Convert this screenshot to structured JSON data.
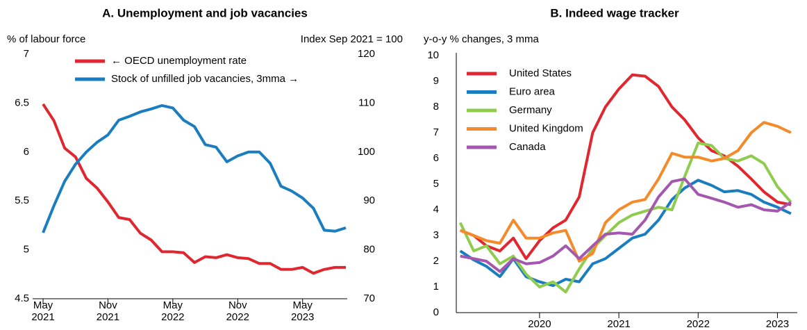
{
  "chart_data": [
    {
      "type": "line",
      "title": "A. Unemployment and job vacancies",
      "ylabel": "% of labour force",
      "y2label": "Index Sep 2021 = 100",
      "categories": [
        "May 2021",
        "Jun 2021",
        "Jul 2021",
        "Aug 2021",
        "Sep 2021",
        "Oct 2021",
        "Nov 2021",
        "Dec 2021",
        "Jan 2022",
        "Feb 2022",
        "Mar 2022",
        "Apr 2022",
        "May 2022",
        "Jun 2022",
        "Jul 2022",
        "Aug 2022",
        "Sep 2022",
        "Oct 2022",
        "Nov 2022",
        "Dec 2022",
        "Jan 2023",
        "Feb 2023",
        "Mar 2023",
        "Apr 2023",
        "May 2023",
        "Jun 2023",
        "Jul 2023",
        "Aug 2023",
        "Sep 2023"
      ],
      "xticks": [
        {
          "value": "May 2021",
          "label": [
            "May",
            "2021"
          ]
        },
        {
          "value": "Nov 2021",
          "label": [
            "Nov",
            "2021"
          ]
        },
        {
          "value": "May 2022",
          "label": [
            "May",
            "2022"
          ]
        },
        {
          "value": "Nov 2022",
          "label": [
            "Nov",
            "2022"
          ]
        },
        {
          "value": "May 2023",
          "label": [
            "May",
            "2023"
          ]
        }
      ],
      "ylim": [
        4.5,
        7.0
      ],
      "yticks": [
        4.5,
        5.0,
        5.5,
        6.0,
        6.5,
        7.0
      ],
      "y2lim": [
        70,
        120
      ],
      "y2ticks": [
        70,
        80,
        90,
        100,
        110,
        120
      ],
      "series": [
        {
          "name": "← OECD unemployment rate",
          "color": "#e0262f",
          "axis": "y",
          "values": [
            6.49,
            6.32,
            6.04,
            5.95,
            5.73,
            5.63,
            5.49,
            5.33,
            5.31,
            5.17,
            5.1,
            4.98,
            4.98,
            4.97,
            4.87,
            4.93,
            4.92,
            4.95,
            4.92,
            4.91,
            4.86,
            4.86,
            4.8,
            4.8,
            4.82,
            4.76,
            4.8,
            4.82,
            4.82
          ]
        },
        {
          "name": "Stock of unfilled job vacancies, 3mma →",
          "color": "#1a7dc0",
          "axis": "y2",
          "values": [
            83.5,
            89,
            94,
            97.5,
            100,
            102,
            103.5,
            106.5,
            107.3,
            108.2,
            108.8,
            109.5,
            109,
            106.5,
            105.2,
            101.5,
            101,
            98,
            99.2,
            100,
            100,
            97.7,
            93,
            92,
            90.6,
            88.5,
            84,
            83.8,
            84.5
          ]
        }
      ]
    },
    {
      "type": "line",
      "title": "B. Indeed wage tracker",
      "ylabel": "y-o-y % changes, 3 mma",
      "x": [
        2019.5,
        2019.67,
        2019.83,
        2020.0,
        2020.17,
        2020.33,
        2020.5,
        2020.67,
        2020.83,
        2021.0,
        2021.17,
        2021.33,
        2021.5,
        2021.67,
        2021.83,
        2022.0,
        2022.17,
        2022.33,
        2022.5,
        2022.67,
        2022.83,
        2023.0,
        2023.17,
        2023.33,
        2023.5,
        2023.67
      ],
      "xlim": [
        2019.45,
        2023.75
      ],
      "xticks": [
        {
          "value": 2020.5,
          "label": "2020"
        },
        {
          "value": 2021.5,
          "label": "2021"
        },
        {
          "value": 2022.5,
          "label": "2022"
        },
        {
          "value": 2023.5,
          "label": "2023"
        }
      ],
      "ylim": [
        0,
        10
      ],
      "yticks": [
        0,
        1,
        2,
        3,
        4,
        5,
        6,
        7,
        8,
        9,
        10
      ],
      "series": [
        {
          "name": "United States",
          "color": "#e0262f",
          "values": [
            3.2,
            3.0,
            2.6,
            2.4,
            2.9,
            2.1,
            2.8,
            3.3,
            3.6,
            4.5,
            7.0,
            8.0,
            8.7,
            9.25,
            9.2,
            8.8,
            8.0,
            7.5,
            6.8,
            6.3,
            6.1,
            5.7,
            5.2,
            4.7,
            4.3,
            4.2
          ]
        },
        {
          "name": "Euro area",
          "color": "#1a7dc0",
          "values": [
            2.4,
            2.05,
            1.8,
            1.4,
            2.1,
            1.4,
            1.2,
            1.05,
            1.3,
            1.2,
            1.9,
            2.1,
            2.5,
            2.9,
            3.05,
            3.6,
            4.4,
            4.85,
            5.15,
            4.95,
            4.7,
            4.75,
            4.6,
            4.3,
            4.1,
            3.85
          ]
        },
        {
          "name": "Germany",
          "color": "#8fcc4e",
          "values": [
            3.5,
            2.4,
            2.6,
            1.9,
            2.2,
            1.5,
            1.0,
            1.2,
            0.8,
            1.7,
            2.5,
            3.0,
            3.5,
            3.8,
            3.95,
            4.1,
            4.0,
            5.3,
            6.6,
            6.5,
            6.0,
            5.9,
            6.1,
            5.8,
            4.9,
            4.3
          ]
        },
        {
          "name": "United Kingdom",
          "color": "#f58a2a",
          "values": [
            3.2,
            3.0,
            2.8,
            2.7,
            3.6,
            2.9,
            2.9,
            3.1,
            3.2,
            2.0,
            2.3,
            3.5,
            4.0,
            4.3,
            4.4,
            5.2,
            6.2,
            6.05,
            6.05,
            5.9,
            6.0,
            6.3,
            7.0,
            7.4,
            7.25,
            7.0
          ]
        },
        {
          "name": "Canada",
          "color": "#a457ae",
          "values": [
            2.2,
            2.1,
            2.0,
            1.6,
            2.1,
            1.9,
            1.95,
            2.2,
            2.6,
            2.1,
            2.6,
            3.05,
            3.1,
            3.05,
            3.6,
            4.5,
            5.1,
            5.2,
            4.6,
            4.45,
            4.3,
            4.1,
            4.2,
            4.0,
            3.95,
            4.3
          ]
        }
      ]
    }
  ]
}
